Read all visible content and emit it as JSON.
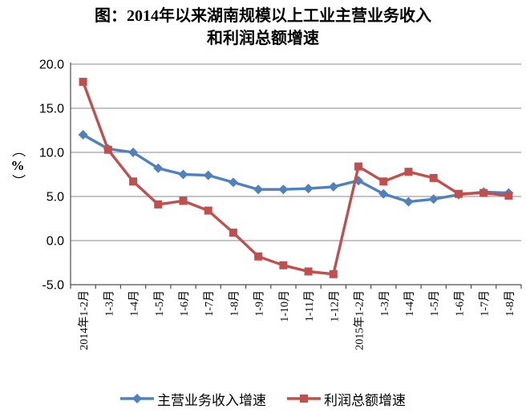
{
  "title": {
    "line1": "图：2014年以来湖南规模以上工业主营业务收入",
    "line2": "和利润总额增速"
  },
  "chart_data": {
    "type": "line",
    "categories": [
      "2014年1-2月",
      "1-3月",
      "1-4月",
      "1-5月",
      "1-6月",
      "1-7月",
      "1-8月",
      "1-9月",
      "1-10月",
      "1-11月",
      "1-12月",
      "2015年1-2月",
      "1-3月",
      "1-4月",
      "1-5月",
      "1-6月",
      "1-7月",
      "1-8月"
    ],
    "series": [
      {
        "name": "主营业务收入增速",
        "color": "#4F81BD",
        "marker": "diamond",
        "values": [
          12.0,
          10.4,
          10.0,
          8.2,
          7.5,
          7.4,
          6.6,
          5.8,
          5.8,
          5.9,
          6.1,
          6.8,
          5.3,
          4.4,
          4.7,
          5.2,
          5.5,
          5.4
        ]
      },
      {
        "name": "利润总额增速",
        "color": "#C0504D",
        "marker": "square",
        "values": [
          18.0,
          10.3,
          6.7,
          4.1,
          4.5,
          3.4,
          0.9,
          -1.8,
          -2.8,
          -3.5,
          -3.8,
          8.4,
          6.7,
          7.8,
          7.1,
          5.3,
          5.4,
          5.1
        ]
      }
    ],
    "ylabel": "（%）",
    "xlabel": "",
    "ylim": [
      -5,
      20
    ],
    "yticks": [
      20.0,
      15.0,
      10.0,
      5.0,
      0.0,
      -5.0
    ],
    "grid": true,
    "legend_position": "bottom"
  },
  "colors": {
    "grid": "#8a8a8a",
    "axis": "#4d4d4d",
    "text": "#000000",
    "background": "#ffffff"
  }
}
